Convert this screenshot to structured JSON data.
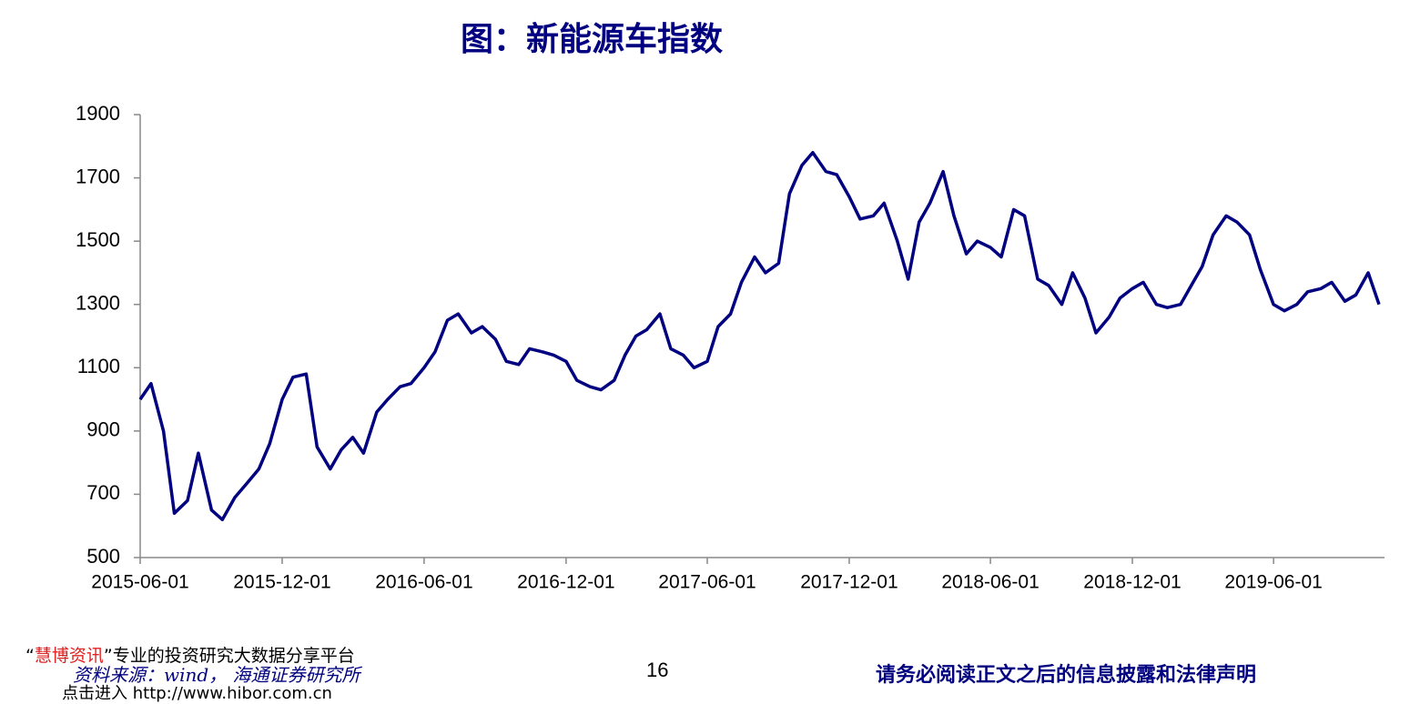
{
  "chart_data": {
    "type": "line",
    "title": "图：新能源车指数",
    "x": [
      "2015-06-01",
      "2015-06-15",
      "2015-07-01",
      "2015-07-15",
      "2015-08-01",
      "2015-08-15",
      "2015-09-01",
      "2015-09-15",
      "2015-10-01",
      "2015-10-15",
      "2015-11-01",
      "2015-11-15",
      "2015-12-01",
      "2015-12-15",
      "2016-01-01",
      "2016-01-15",
      "2016-02-01",
      "2016-02-15",
      "2016-03-01",
      "2016-03-15",
      "2016-04-01",
      "2016-04-15",
      "2016-05-01",
      "2016-05-15",
      "2016-06-01",
      "2016-06-15",
      "2016-07-01",
      "2016-07-15",
      "2016-08-01",
      "2016-08-15",
      "2016-09-01",
      "2016-09-15",
      "2016-10-01",
      "2016-10-15",
      "2016-11-01",
      "2016-11-15",
      "2016-12-01",
      "2016-12-15",
      "2017-01-01",
      "2017-01-15",
      "2017-02-01",
      "2017-02-15",
      "2017-03-01",
      "2017-03-15",
      "2017-04-01",
      "2017-04-15",
      "2017-05-01",
      "2017-05-15",
      "2017-06-01",
      "2017-06-15",
      "2017-07-01",
      "2017-07-15",
      "2017-08-01",
      "2017-08-15",
      "2017-09-01",
      "2017-09-15",
      "2017-10-01",
      "2017-10-15",
      "2017-11-01",
      "2017-11-15",
      "2017-12-01",
      "2017-12-15",
      "2018-01-01",
      "2018-01-15",
      "2018-02-01",
      "2018-02-15",
      "2018-03-01",
      "2018-03-15",
      "2018-04-01",
      "2018-04-15",
      "2018-05-01",
      "2018-05-15",
      "2018-06-01",
      "2018-06-15",
      "2018-07-01",
      "2018-07-15",
      "2018-08-01",
      "2018-08-15",
      "2018-09-01",
      "2018-09-15",
      "2018-10-01",
      "2018-10-15",
      "2018-11-01",
      "2018-11-15",
      "2018-12-01",
      "2018-12-15",
      "2019-01-01",
      "2019-01-15",
      "2019-02-01",
      "2019-02-15",
      "2019-03-01",
      "2019-03-15",
      "2019-04-01",
      "2019-04-15",
      "2019-05-01",
      "2019-05-15",
      "2019-06-01",
      "2019-06-15",
      "2019-07-01",
      "2019-07-15",
      "2019-08-01",
      "2019-08-15",
      "2019-09-01",
      "2019-09-15",
      "2019-10-01",
      "2019-10-15"
    ],
    "values": [
      1000,
      1050,
      900,
      640,
      680,
      830,
      650,
      620,
      690,
      730,
      780,
      860,
      1000,
      1070,
      1080,
      850,
      780,
      840,
      880,
      830,
      960,
      1000,
      1040,
      1050,
      1100,
      1150,
      1250,
      1270,
      1210,
      1230,
      1190,
      1120,
      1110,
      1160,
      1150,
      1140,
      1120,
      1060,
      1040,
      1030,
      1060,
      1140,
      1200,
      1220,
      1270,
      1160,
      1140,
      1100,
      1120,
      1230,
      1270,
      1370,
      1450,
      1400,
      1430,
      1650,
      1740,
      1780,
      1720,
      1710,
      1640,
      1570,
      1580,
      1620,
      1500,
      1380,
      1560,
      1620,
      1720,
      1580,
      1460,
      1500,
      1480,
      1450,
      1600,
      1580,
      1380,
      1360,
      1300,
      1400,
      1320,
      1210,
      1260,
      1320,
      1350,
      1370,
      1300,
      1290,
      1300,
      1360,
      1420,
      1520,
      1580,
      1560,
      1520,
      1410,
      1300,
      1280,
      1300,
      1340,
      1350,
      1370,
      1310,
      1330,
      1400,
      1300
    ],
    "color": "#000080",
    "xlim": [
      "2015-06-01",
      "2019-10-22"
    ],
    "xticks": [
      "2015-06-01",
      "2015-12-01",
      "2016-06-01",
      "2016-12-01",
      "2017-06-01",
      "2017-12-01",
      "2018-06-01",
      "2018-12-01",
      "2019-06-01"
    ],
    "ylim": [
      500,
      1900
    ],
    "yticks": [
      500,
      700,
      900,
      1100,
      1300,
      1500,
      1700,
      1900
    ]
  },
  "footer": {
    "quote_open": "“",
    "brand": "慧博资讯",
    "slogan": "”专业的投资研究大数据分享平台",
    "source": "资料来源：wind， 海通证券研究所",
    "click": "点击进入",
    "url": "http://www.hibor.com.cn",
    "page": "16",
    "disclaimer": "请务必阅读正文之后的信息披露和法律声明"
  }
}
